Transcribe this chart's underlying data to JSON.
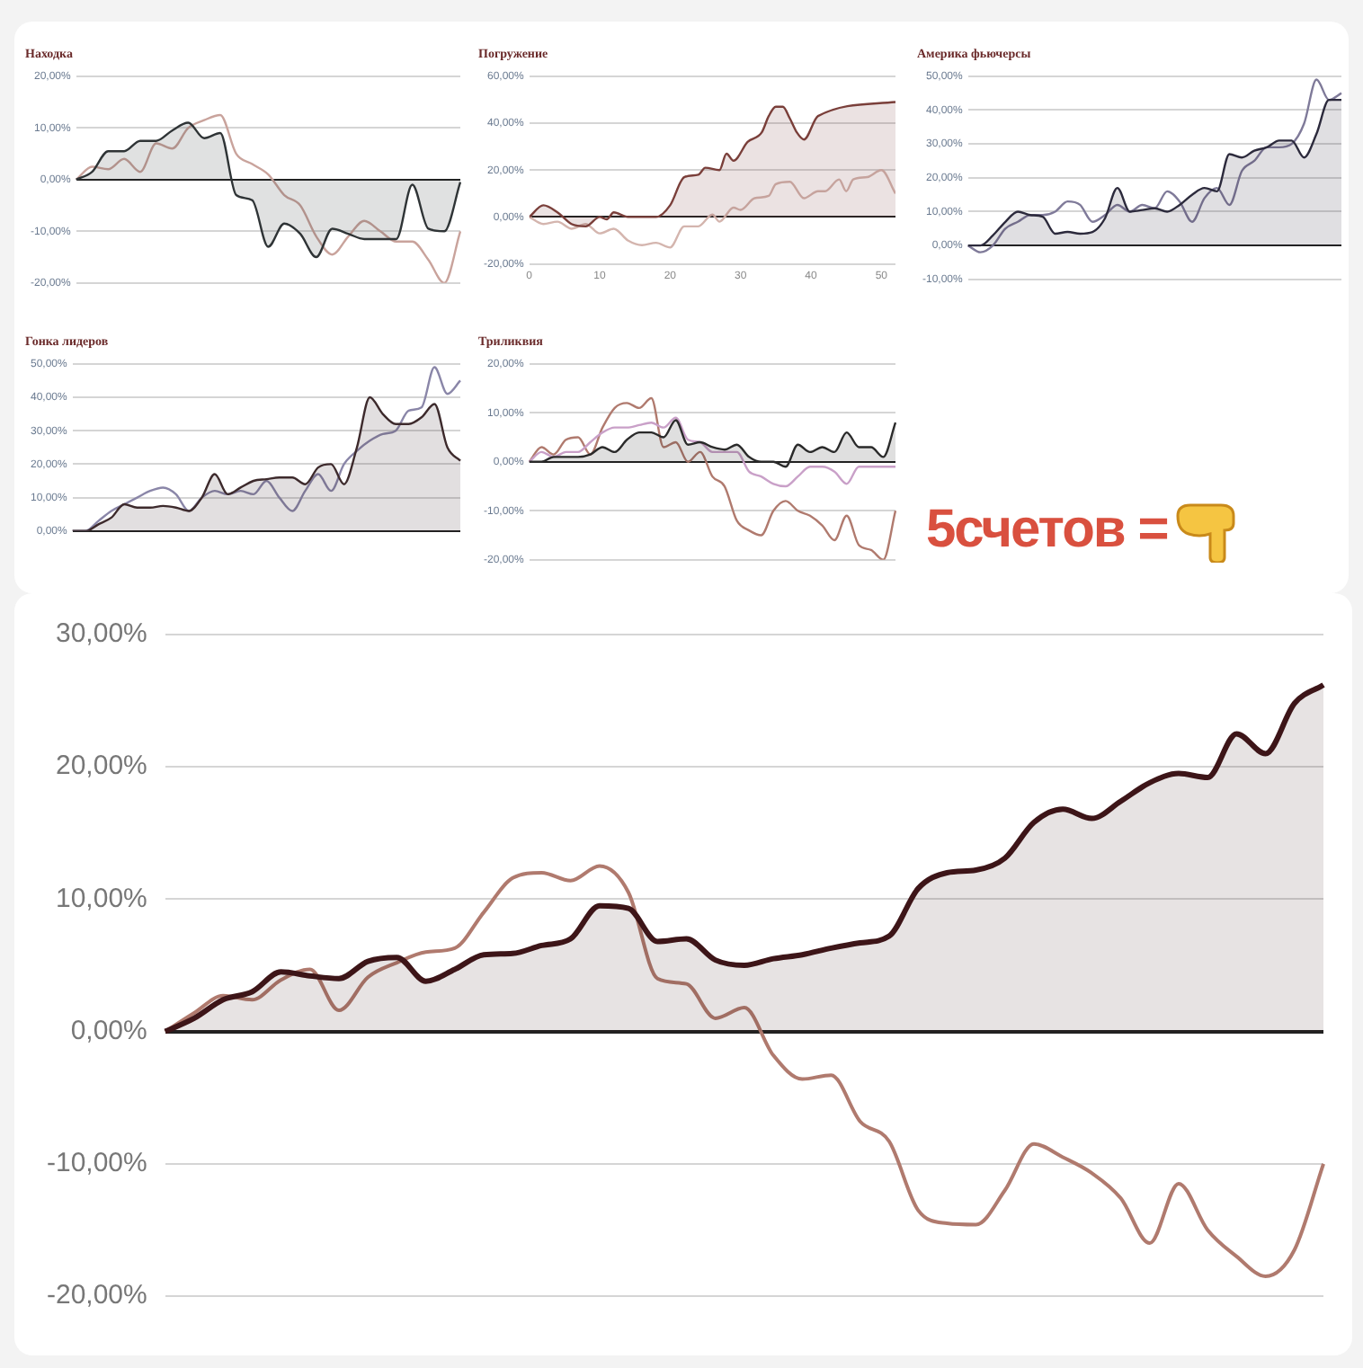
{
  "chart_data": [
    {
      "type": "line",
      "title": "Находка",
      "grid": "y",
      "tick_labels": "y",
      "categories": [
        null,
        null,
        null,
        null,
        null,
        null,
        null,
        null,
        null,
        null,
        null,
        null,
        null,
        null,
        null,
        null,
        null,
        null,
        null,
        null,
        null,
        null,
        null,
        null,
        null
      ],
      "ylim": [
        -20,
        20
      ],
      "yticks": [
        {
          "value": 20,
          "label": "20,00%"
        },
        {
          "value": 10,
          "label": "10,00%"
        },
        {
          "value": 0,
          "label": "0,00%"
        },
        {
          "value": -10,
          "label": "-10,00%"
        },
        {
          "value": -20,
          "label": "-20,00%"
        }
      ],
      "series": [
        {
          "type": "area",
          "color": "#2f3436",
          "values": [
            0,
            1.5,
            5.5,
            5.5,
            7.5,
            7.5,
            9.5,
            11,
            8,
            9,
            -3,
            -4,
            -13,
            -8.5,
            -10.5,
            -15,
            -9.5,
            -10.5,
            -11.5,
            -11.5,
            -11.5,
            -1,
            -9.5,
            -10,
            -0.5
          ]
        },
        {
          "type": "line",
          "color": "#c9a39c",
          "values": [
            0,
            2.5,
            2,
            4,
            1.5,
            7,
            6,
            10,
            11.5,
            12.5,
            5,
            3,
            1,
            -3,
            -5,
            -11,
            -14.5,
            -11,
            -8,
            -10,
            -12,
            -12,
            -15.5,
            -20,
            -10
          ]
        }
      ]
    },
    {
      "type": "line",
      "title": "Погружение",
      "grid": "y",
      "xlim": [
        0,
        52
      ],
      "xticks": [
        0,
        10,
        20,
        30,
        40,
        50
      ],
      "ylim": [
        -20,
        60
      ],
      "yticks": [
        {
          "value": 60,
          "label": "60,00%"
        },
        {
          "value": 40,
          "label": "40,00%"
        },
        {
          "value": 20,
          "label": "20,00%"
        },
        {
          "value": 0,
          "label": "0,00%"
        },
        {
          "value": -20,
          "label": "-20,00%"
        }
      ],
      "series": [
        {
          "type": "area",
          "color": "#7a3f3a",
          "x": [
            0,
            2,
            4,
            6,
            8,
            10,
            11,
            12,
            14,
            16,
            18,
            20,
            22,
            24,
            25,
            27,
            28,
            29,
            31,
            33,
            34,
            35,
            36,
            37,
            38,
            39,
            41,
            52
          ],
          "values": [
            0,
            5,
            2,
            -3,
            -4,
            0,
            -1,
            2,
            0,
            0,
            0,
            5,
            17,
            18,
            21,
            20,
            27,
            24,
            32,
            36,
            43,
            47,
            47,
            42,
            36,
            33,
            43,
            49
          ]
        },
        {
          "type": "line",
          "color": "#d4b5ae",
          "x": [
            0,
            2,
            4,
            6,
            8,
            10,
            12,
            14,
            16,
            18,
            20,
            22,
            24,
            26,
            27,
            29,
            30,
            32,
            34,
            35,
            37,
            39,
            41,
            42,
            44,
            45,
            46,
            48,
            50,
            52
          ],
          "values": [
            0,
            -3,
            -2,
            -5,
            -3,
            -7,
            -5,
            -10,
            -12,
            -11,
            -13,
            -4,
            -4,
            1,
            -2,
            4,
            3,
            8,
            9,
            14,
            15,
            8,
            11,
            11,
            16,
            11,
            16,
            17,
            20,
            10
          ]
        }
      ]
    },
    {
      "type": "line",
      "title": "Америка фьючерсы",
      "grid": "y",
      "tick_labels": "y",
      "categories": [
        null,
        null,
        null,
        null,
        null,
        null,
        null,
        null,
        null,
        null,
        null,
        null,
        null,
        null,
        null,
        null,
        null,
        null,
        null,
        null,
        null,
        null,
        null,
        null,
        null,
        null,
        null,
        null,
        null,
        null,
        null
      ],
      "ylim": [
        -10,
        50
      ],
      "yticks": [
        {
          "value": 50,
          "label": "50,00%"
        },
        {
          "value": 40,
          "label": "40,00%"
        },
        {
          "value": 30,
          "label": "30,00%"
        },
        {
          "value": 20,
          "label": "20,00%"
        },
        {
          "value": 10,
          "label": "10,00%"
        },
        {
          "value": 0,
          "label": "0,00%"
        },
        {
          "value": -10,
          "label": "-10,00%"
        }
      ],
      "series": [
        {
          "type": "area",
          "color": "#2c2a3c",
          "values": [
            0,
            0,
            3,
            7,
            10,
            9,
            8.5,
            3.5,
            4,
            3.5,
            4,
            8,
            17,
            10,
            10.5,
            11,
            10,
            12,
            15,
            17,
            16,
            27,
            26,
            28,
            29,
            31,
            31,
            26,
            33,
            43,
            43
          ]
        },
        {
          "type": "line",
          "color": "#7f7a99",
          "values": [
            0,
            -2,
            0,
            5,
            7,
            9,
            9,
            10,
            13,
            12,
            7,
            9,
            12,
            10,
            12,
            11,
            16,
            13,
            7,
            14,
            17,
            12,
            22,
            25,
            29,
            29,
            30,
            36,
            49,
            43,
            45
          ]
        }
      ]
    },
    {
      "type": "line",
      "title": "Гонка лидеров",
      "grid": "y",
      "tick_labels": "y",
      "categories": [
        null,
        null,
        null,
        null,
        null,
        null,
        null,
        null,
        null,
        null,
        null,
        null,
        null,
        null,
        null,
        null,
        null,
        null,
        null,
        null,
        null,
        null,
        null,
        null,
        null,
        null,
        null,
        null,
        null,
        null,
        null
      ],
      "ylim": [
        0,
        50
      ],
      "yticks": [
        {
          "value": 50,
          "label": "50,00%"
        },
        {
          "value": 40,
          "label": "40,00%"
        },
        {
          "value": 30,
          "label": "30,00%"
        },
        {
          "value": 20,
          "label": "20,00%"
        },
        {
          "value": 10,
          "label": "10,00%"
        },
        {
          "value": 0,
          "label": "0,00%"
        }
      ],
      "series": [
        {
          "type": "area",
          "color": "#3d2a2c",
          "values": [
            0,
            0,
            2,
            4,
            8,
            7,
            7,
            7.5,
            7,
            6,
            10,
            17,
            11,
            13,
            15,
            15.5,
            16,
            16,
            14,
            19,
            20,
            14,
            25,
            40,
            35,
            32,
            32,
            34,
            38,
            25,
            21
          ]
        },
        {
          "type": "line",
          "color": "#8a86a8",
          "values": [
            0,
            0,
            3,
            6,
            8,
            10,
            12,
            13,
            11,
            6,
            10,
            12,
            11,
            12,
            11,
            15,
            10,
            6,
            12,
            17,
            12,
            20,
            24,
            27,
            29,
            30,
            36,
            37,
            49,
            41,
            45
          ]
        }
      ]
    },
    {
      "type": "line",
      "title": "Триликвия",
      "grid": "y",
      "tick_labels": "y",
      "categories": [
        null,
        null,
        null,
        null,
        null,
        null,
        null,
        null,
        null,
        null,
        null,
        null,
        null,
        null,
        null,
        null,
        null,
        null,
        null,
        null,
        null,
        null,
        null,
        null,
        null,
        null,
        null,
        null,
        null,
        null,
        null
      ],
      "ylim": [
        -20,
        20
      ],
      "yticks": [
        {
          "value": 20,
          "label": "20,00%"
        },
        {
          "value": 10,
          "label": "10,00%"
        },
        {
          "value": 0,
          "label": "0,00%"
        },
        {
          "value": -10,
          "label": "-10,00%"
        },
        {
          "value": -20,
          "label": "-20,00%"
        }
      ],
      "series": [
        {
          "type": "area",
          "color": "#2a2a2a",
          "values": [
            0,
            0,
            1,
            1,
            1,
            1.5,
            3,
            2,
            4.5,
            6,
            6,
            5,
            8.5,
            3.5,
            4,
            3,
            2.5,
            3.5,
            1,
            0,
            0,
            -1,
            3.5,
            2,
            3,
            2,
            6,
            3,
            3,
            1,
            8
          ]
        },
        {
          "type": "line",
          "color": "#c9a0c8",
          "values": [
            0,
            2,
            1,
            2,
            2,
            4,
            6,
            7,
            7,
            7.5,
            8,
            7,
            9,
            4.5,
            4,
            2,
            2,
            2,
            -2,
            -3,
            -4.5,
            -5,
            -3,
            -1,
            -1,
            -2,
            -4.5,
            -1,
            -1,
            -1,
            -1
          ]
        },
        {
          "type": "line",
          "color": "#b07a6e",
          "values": [
            0,
            3,
            1.5,
            4.5,
            5,
            1.5,
            7,
            11,
            12,
            11,
            13,
            3,
            4,
            0,
            2,
            -3,
            -5,
            -12,
            -14,
            -15,
            -10,
            -8,
            -10,
            -11,
            -13,
            -16,
            -11,
            -17,
            -18,
            -20,
            -10
          ]
        }
      ]
    },
    {
      "type": "other",
      "title": "5счетов ="
    },
    {
      "type": "line",
      "grid": "y",
      "tick_labels": "y",
      "categories": [
        null,
        null,
        null,
        null,
        null,
        null,
        null,
        null,
        null,
        null,
        null,
        null,
        null,
        null,
        null,
        null,
        null,
        null,
        null,
        null,
        null,
        null,
        null,
        null,
        null,
        null,
        null,
        null,
        null,
        null,
        null,
        null,
        null,
        null,
        null,
        null,
        null,
        null,
        null,
        null,
        null
      ],
      "ylim": [
        -20,
        30
      ],
      "yticks": [
        {
          "value": 30,
          "label": "30,00%"
        },
        {
          "value": 20,
          "label": "20,00%"
        },
        {
          "value": 10,
          "label": "10,00%"
        },
        {
          "value": 0,
          "label": "0,00%"
        },
        {
          "value": -10,
          "label": "-10,00%"
        },
        {
          "value": -20,
          "label": "-20,00%"
        }
      ],
      "series": [
        {
          "type": "area",
          "color": "#3d1518",
          "values": [
            0,
            1,
            2.4,
            3,
            4.5,
            4.2,
            4,
            5.3,
            5.6,
            3.8,
            4.7,
            5.8,
            5.9,
            6.5,
            7,
            9.5,
            9.3,
            6.8,
            7,
            5.4,
            5,
            5.5,
            5.8,
            6.3,
            6.7,
            7.2,
            10.8,
            12,
            12.2,
            13.1,
            15.8,
            16.8,
            16.1,
            17.4,
            18.8,
            19.5,
            19.2,
            22.5,
            21,
            24.8,
            26.2
          ]
        },
        {
          "type": "line",
          "color": "#b07a6e",
          "values": [
            0,
            1.4,
            2.7,
            2.4,
            3.9,
            4.7,
            1.6,
            4.1,
            5.2,
            6,
            6.3,
            9,
            11.6,
            12,
            11.4,
            12.5,
            10.5,
            4,
            3.6,
            1,
            1.8,
            -1.8,
            -3.6,
            -3.3,
            -6.8,
            -8.3,
            -13.5,
            -14.5,
            -14.6,
            -12,
            -8.5,
            -9.5,
            -10.7,
            -12.6,
            -16,
            -11.5,
            -15,
            -17,
            -18.5,
            -16.5,
            -10
          ]
        }
      ]
    }
  ]
}
